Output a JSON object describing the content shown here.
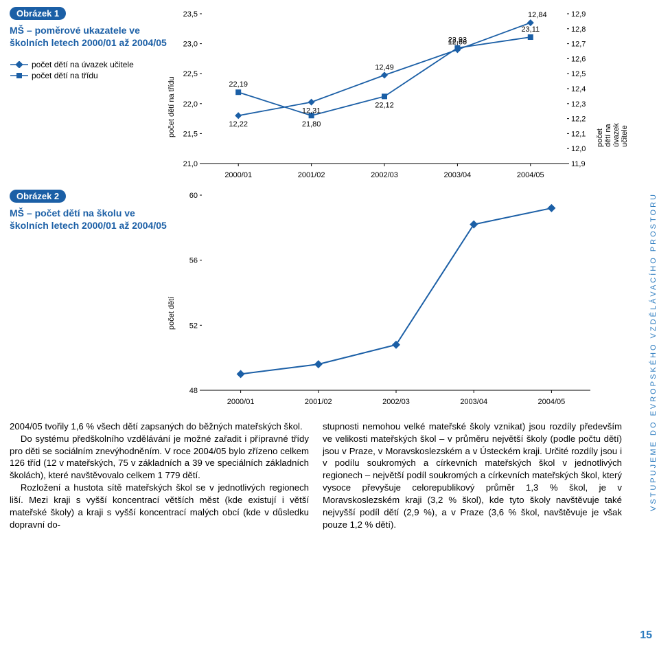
{
  "side_label": "VSTUPUJEME DO EVROPSKÉHO VZDĚLÁVACÍHO PROSTORU",
  "page_num": "15",
  "fig1": {
    "tag": "Obrázek 1",
    "title": "MŠ – poměrové ukazatele ve školních letech 2000/01 až 2004/05",
    "legend1": "počet dětí na úvazek učitele",
    "legend2": "počet dětí na třídu",
    "y_left_label": "počet dětí na třídu",
    "y_right_label": "počet dětí na úvazek učitele",
    "categories": [
      "2000/01",
      "2001/02",
      "2002/03",
      "2003/04",
      "2004/05"
    ],
    "y_left_ticks": [
      "21,0",
      "21,5",
      "22,0",
      "22,5",
      "23,0",
      "23,5"
    ],
    "y_right_ticks": [
      "11,9",
      "12,0",
      "12,1",
      "12,2",
      "12,3",
      "12,4",
      "12,5",
      "12,6",
      "12,7",
      "12,8",
      "12,9"
    ],
    "series_trida": {
      "values": [
        22.19,
        21.8,
        22.12,
        22.93,
        23.11
      ],
      "labels": [
        "22,19",
        "21,80",
        "22,12",
        "22,93",
        "23,11"
      ],
      "color": "#1b5fa6",
      "marker": "square"
    },
    "series_uvazek": {
      "values": [
        12.22,
        12.31,
        12.49,
        12.66,
        12.84
      ],
      "labels": [
        "12,22",
        "12,31",
        "12,49",
        "12,66",
        "12,84"
      ],
      "color": "#1b5fa6",
      "marker": "diamond"
    },
    "y_left_min": 21.0,
    "y_left_max": 23.5,
    "y_right_min": 11.9,
    "y_right_max": 12.9,
    "grid_color": "#ffffff",
    "plot_bg": "#ffffff"
  },
  "fig2": {
    "tag": "Obrázek 2",
    "title": "MŠ – počet dětí na školu ve školních letech 2000/01 až 2004/05",
    "y_label": "počet dětí",
    "categories": [
      "2000/01",
      "2001/02",
      "2002/03",
      "2003/04",
      "2004/05"
    ],
    "y_ticks": [
      "48",
      "52",
      "56",
      "60"
    ],
    "values": [
      49.0,
      49.6,
      50.8,
      58.2,
      59.2
    ],
    "color": "#1b5fa6",
    "marker": "diamond",
    "y_min": 48,
    "y_max": 60
  },
  "text": {
    "colL": [
      "2004/05 tvořily 1,6 % všech dětí zapsaných do běžných mateřských škol.",
      "Do systému předškolního vzdělávání je možné zařadit i přípravné třídy pro děti se sociálním znevýhodněním. V roce 2004/05 bylo zřízeno celkem 126 tříd (12 v mateřských, 75 v základních a 39 ve speciálních základních školách), které navštěvovalo celkem 1 779 dětí.",
      "Rozložení a hustota sítě mateřských škol se v jednotlivých regionech liší. Mezi kraji s vyšší koncentrací větších měst (kde existují i větší mateřské školy) a kraji s vyšší koncentrací malých obcí (kde v důsledku dopravní do-"
    ],
    "colR": [
      "stupnosti nemohou velké mateřské školy vznikat) jsou rozdíly především ve velikosti mateřských škol – v průměru největší školy (podle počtu dětí) jsou v Praze, v Moravskoslezském a v Ústeckém kraji. Určité rozdíly jsou i v podílu soukromých a církevních mateřských škol v jednotlivých regionech – největší podíl soukromých a církevních mateřských škol, který vysoce převyšuje celorepublikový průměr 1,3 % škol, je v Moravskoslezském kraji (3,2 % škol), kde tyto školy navštěvuje také nejvyšší podíl dětí (2,9 %), a v Praze (3,6 % škol, navštěvuje je však pouze 1,2 % dětí)."
    ]
  }
}
